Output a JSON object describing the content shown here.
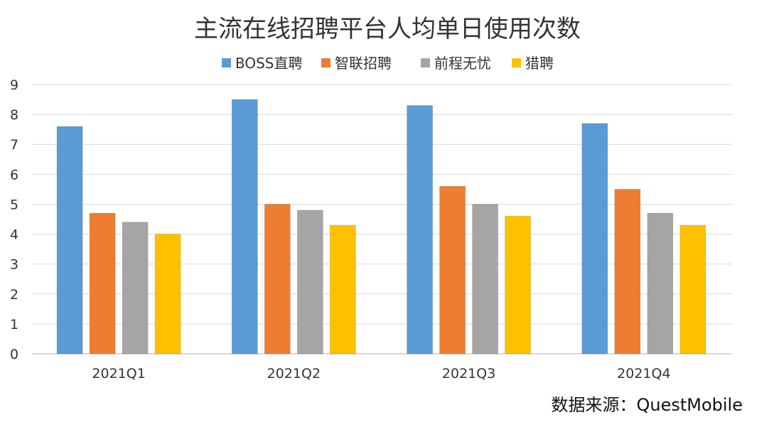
{
  "chart_data": {
    "type": "bar",
    "title": "主流在线招聘平台人均单日使用次数",
    "categories": [
      "2021Q1",
      "2021Q2",
      "2021Q3",
      "2021Q4"
    ],
    "series": [
      {
        "name": "BOSS直聘",
        "color": "#5b9bd5",
        "values": [
          7.6,
          8.5,
          8.3,
          7.7
        ]
      },
      {
        "name": "智联招聘",
        "color": "#ed7d31",
        "values": [
          4.7,
          5.0,
          5.6,
          5.5
        ]
      },
      {
        "name": "前程无忧",
        "color": "#a5a5a5",
        "values": [
          4.4,
          4.8,
          5.0,
          4.7
        ]
      },
      {
        "name": "猎聘",
        "color": "#ffc000",
        "values": [
          4.0,
          4.3,
          4.6,
          4.3
        ]
      }
    ],
    "yticks": [
      "0",
      "1",
      "2",
      "3",
      "4",
      "5",
      "6",
      "7",
      "8",
      "9"
    ],
    "ylim": [
      0,
      9
    ],
    "grid": true,
    "legend_position": "top-center",
    "xlabel": "",
    "ylabel": "",
    "source": "数据来源：QuestMobile"
  }
}
